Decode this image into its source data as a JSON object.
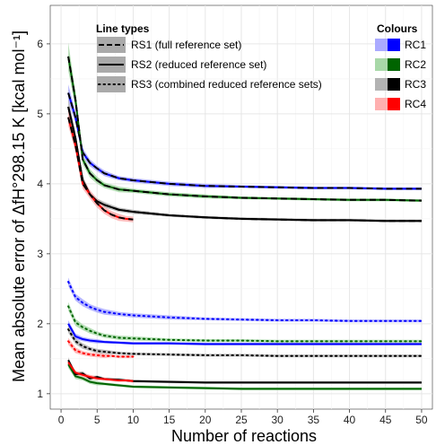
{
  "chart_data": {
    "type": "line",
    "ylabel": "Mean absolute error of ΔfH°298.15 K [kcal mol⁻¹]",
    "xlabel": "Number of reactions",
    "xlim": [
      -1.5,
      51.5
    ],
    "ylim": [
      0.78,
      6.55
    ],
    "x_ticks": [
      0,
      5,
      10,
      15,
      20,
      25,
      30,
      35,
      40,
      45,
      50
    ],
    "y_ticks": [
      1,
      2,
      3,
      4,
      5,
      6
    ],
    "grid": true,
    "legend_line_types": {
      "title": "Line types",
      "position": "top-center",
      "entries": [
        {
          "label": "RS1 (full reference set)",
          "dash": "dashed"
        },
        {
          "label": "RS2 (reduced reference set)",
          "dash": "solid"
        },
        {
          "label": "RS3 (combined reduced reference sets)",
          "dash": "dotted"
        }
      ]
    },
    "legend_colours": {
      "title": "Colours",
      "position": "top-right",
      "entries": [
        {
          "label": "RC1",
          "color": "#0000ff",
          "light": "#aaaaff"
        },
        {
          "label": "RC2",
          "color": "#006400",
          "light": "#a8d8a8"
        },
        {
          "label": "RC3",
          "color": "#000000",
          "light": "#b3b3b3"
        },
        {
          "label": "RC4",
          "color": "#ff0000",
          "light": "#ffb0b0"
        }
      ]
    },
    "series": [
      {
        "rc": "RC1",
        "rs": "RS1",
        "x": [
          1,
          2,
          3,
          4,
          5,
          6,
          8,
          10,
          15,
          20,
          25,
          30,
          35,
          40,
          45,
          50
        ],
        "y": [
          5.3,
          4.95,
          4.45,
          4.3,
          4.22,
          4.15,
          4.08,
          4.05,
          4.0,
          3.97,
          3.96,
          3.95,
          3.94,
          3.94,
          3.93,
          3.93
        ],
        "band": [
          0.12,
          0.08,
          0.06,
          0.05,
          0.04,
          0.04,
          0.03,
          0.03,
          0.03,
          0.03,
          0.02,
          0.02,
          0.02,
          0.02,
          0.02,
          0.02
        ]
      },
      {
        "rc": "RC2",
        "rs": "RS1",
        "x": [
          1,
          2,
          3,
          4,
          5,
          6,
          8,
          10,
          15,
          20,
          25,
          30,
          35,
          40,
          45,
          50
        ],
        "y": [
          5.82,
          5.2,
          4.35,
          4.15,
          4.05,
          3.98,
          3.92,
          3.9,
          3.85,
          3.82,
          3.8,
          3.79,
          3.78,
          3.77,
          3.77,
          3.76
        ],
        "band": [
          0.2,
          0.12,
          0.07,
          0.06,
          0.05,
          0.04,
          0.04,
          0.03,
          0.03,
          0.03,
          0.02,
          0.02,
          0.02,
          0.02,
          0.02,
          0.02
        ]
      },
      {
        "rc": "RC3",
        "rs": "RS1",
        "x": [
          1,
          2,
          3,
          4,
          5,
          6,
          8,
          10,
          15,
          20,
          25,
          30,
          35,
          40,
          45,
          50
        ],
        "y": [
          5.1,
          4.65,
          4.05,
          3.85,
          3.75,
          3.7,
          3.63,
          3.6,
          3.55,
          3.52,
          3.5,
          3.49,
          3.48,
          3.48,
          3.47,
          3.47
        ],
        "band": [
          0.12,
          0.09,
          0.06,
          0.05,
          0.04,
          0.04,
          0.03,
          0.03,
          0.02,
          0.02,
          0.02,
          0.02,
          0.02,
          0.02,
          0.02,
          0.02
        ]
      },
      {
        "rc": "RC4",
        "rs": "RS1",
        "x": [
          1,
          2,
          3,
          4,
          5,
          6,
          7,
          8,
          9,
          10
        ],
        "y": [
          4.95,
          4.55,
          4.0,
          3.85,
          3.72,
          3.62,
          3.56,
          3.52,
          3.5,
          3.49
        ],
        "band": [
          0.12,
          0.1,
          0.07,
          0.06,
          0.06,
          0.05,
          0.05,
          0.05,
          0.04,
          0.04
        ]
      },
      {
        "rc": "RC1",
        "rs": "RS2",
        "x": [
          1,
          2,
          3,
          4,
          5,
          6,
          8,
          10,
          15,
          20,
          25,
          30,
          35,
          40,
          45,
          50
        ],
        "y": [
          2.0,
          1.82,
          1.78,
          1.76,
          1.75,
          1.74,
          1.73,
          1.72,
          1.72,
          1.71,
          1.71,
          1.71,
          1.71,
          1.71,
          1.71,
          1.71
        ],
        "band": [
          0.05,
          0.04,
          0.03,
          0.03,
          0.03,
          0.02,
          0.02,
          0.02,
          0.02,
          0.02,
          0.02,
          0.02,
          0.02,
          0.02,
          0.02,
          0.02
        ]
      },
      {
        "rc": "RC2",
        "rs": "RS2",
        "x": [
          1,
          2,
          3,
          4,
          5,
          6,
          8,
          10,
          15,
          20,
          25,
          30,
          35,
          40,
          45,
          50
        ],
        "y": [
          1.42,
          1.25,
          1.22,
          1.17,
          1.15,
          1.14,
          1.12,
          1.1,
          1.09,
          1.08,
          1.07,
          1.07,
          1.07,
          1.07,
          1.07,
          1.07
        ],
        "band": [
          0.05,
          0.04,
          0.03,
          0.03,
          0.03,
          0.02,
          0.02,
          0.02,
          0.02,
          0.02,
          0.02,
          0.02,
          0.02,
          0.02,
          0.02,
          0.02
        ]
      },
      {
        "rc": "RC3",
        "rs": "RS2",
        "x": [
          1,
          2,
          3,
          4,
          5,
          6,
          8,
          10,
          15,
          20,
          25,
          30,
          35,
          40,
          45,
          50
        ],
        "y": [
          1.48,
          1.28,
          1.29,
          1.22,
          1.24,
          1.21,
          1.2,
          1.18,
          1.17,
          1.16,
          1.16,
          1.16,
          1.16,
          1.16,
          1.16,
          1.16
        ],
        "band": [
          0.04,
          0.03,
          0.03,
          0.03,
          0.02,
          0.02,
          0.02,
          0.02,
          0.02,
          0.02,
          0.02,
          0.02,
          0.02,
          0.02,
          0.02,
          0.02
        ]
      },
      {
        "rc": "RC4",
        "rs": "RS2",
        "x": [
          1,
          2,
          3,
          4,
          5,
          6,
          7,
          8,
          9,
          10
        ],
        "y": [
          1.45,
          1.3,
          1.27,
          1.24,
          1.22,
          1.21,
          1.2,
          1.19,
          1.19,
          1.18
        ],
        "band": [
          0.04,
          0.03,
          0.03,
          0.03,
          0.03,
          0.02,
          0.02,
          0.02,
          0.02,
          0.02
        ]
      },
      {
        "rc": "RC1",
        "rs": "RS3",
        "x": [
          1,
          2,
          3,
          4,
          5,
          6,
          8,
          10,
          15,
          20,
          25,
          30,
          35,
          40,
          45,
          50
        ],
        "y": [
          2.6,
          2.38,
          2.3,
          2.24,
          2.2,
          2.17,
          2.14,
          2.12,
          2.09,
          2.07,
          2.06,
          2.05,
          2.05,
          2.04,
          2.04,
          2.04
        ],
        "band": [
          0.06,
          0.05,
          0.05,
          0.04,
          0.04,
          0.04,
          0.03,
          0.03,
          0.03,
          0.02,
          0.02,
          0.02,
          0.02,
          0.02,
          0.02,
          0.02
        ]
      },
      {
        "rc": "RC2",
        "rs": "RS3",
        "x": [
          1,
          2,
          3,
          4,
          5,
          6,
          8,
          10,
          15,
          20,
          25,
          30,
          35,
          40,
          45,
          50
        ],
        "y": [
          2.25,
          2.02,
          1.95,
          1.9,
          1.86,
          1.83,
          1.8,
          1.79,
          1.77,
          1.76,
          1.76,
          1.75,
          1.75,
          1.75,
          1.75,
          1.75
        ],
        "band": [
          0.06,
          0.05,
          0.04,
          0.04,
          0.03,
          0.03,
          0.03,
          0.03,
          0.02,
          0.02,
          0.02,
          0.02,
          0.02,
          0.02,
          0.02,
          0.02
        ]
      },
      {
        "rc": "RC3",
        "rs": "RS3",
        "x": [
          1,
          2,
          3,
          4,
          5,
          6,
          8,
          10,
          15,
          20,
          25,
          30,
          35,
          40,
          45,
          50
        ],
        "y": [
          1.92,
          1.75,
          1.68,
          1.64,
          1.61,
          1.6,
          1.58,
          1.57,
          1.56,
          1.55,
          1.55,
          1.54,
          1.54,
          1.54,
          1.54,
          1.54
        ],
        "band": [
          0.05,
          0.04,
          0.04,
          0.03,
          0.03,
          0.03,
          0.02,
          0.02,
          0.02,
          0.02,
          0.02,
          0.02,
          0.02,
          0.02,
          0.02,
          0.02
        ]
      },
      {
        "rc": "RC4",
        "rs": "RS3",
        "x": [
          1,
          2,
          3,
          4,
          5,
          6,
          7,
          8,
          9,
          10
        ],
        "y": [
          1.75,
          1.62,
          1.58,
          1.56,
          1.55,
          1.54,
          1.54,
          1.53,
          1.53,
          1.53
        ],
        "band": [
          0.05,
          0.04,
          0.03,
          0.03,
          0.03,
          0.03,
          0.02,
          0.02,
          0.02,
          0.02
        ]
      }
    ]
  }
}
